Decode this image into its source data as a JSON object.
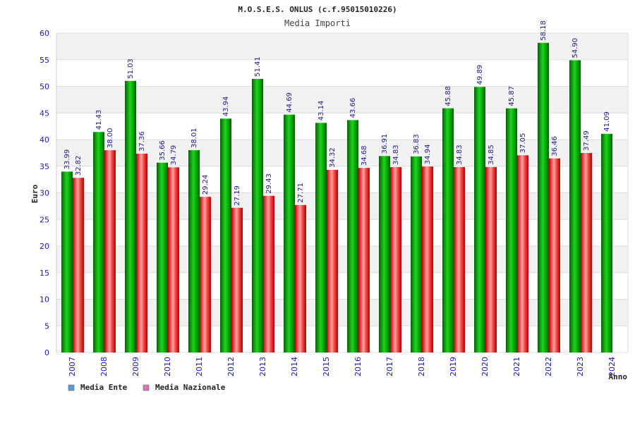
{
  "chart_data": {
    "type": "bar",
    "title": "M.O.S.E.S. ONLUS (c.f.95015010226)",
    "subtitle": "Media Importi",
    "ylabel": "Euro",
    "xlabel": "Anno",
    "ylim": [
      0,
      60
    ],
    "yticks": [
      0,
      5,
      10,
      15,
      20,
      25,
      30,
      35,
      40,
      45,
      50,
      55,
      60
    ],
    "categories": [
      "2007",
      "2008",
      "2009",
      "2010",
      "2011",
      "2012",
      "2013",
      "2014",
      "2015",
      "2016",
      "2017",
      "2018",
      "2019",
      "2020",
      "2021",
      "2022",
      "2023",
      "2024"
    ],
    "series": [
      {
        "name": "Media Ente",
        "color": "#00a000",
        "legend_color": "#5b9bd5",
        "values": [
          33.99,
          41.43,
          51.03,
          35.66,
          38.01,
          43.94,
          51.41,
          44.69,
          43.14,
          43.66,
          36.91,
          36.83,
          45.88,
          49.89,
          45.87,
          58.18,
          54.9,
          41.09
        ],
        "labels": [
          "33.99",
          "41.43",
          "51.03",
          "35.66",
          "38.01",
          "43.94",
          "51.41",
          "44.69",
          "43.14",
          "43.66",
          "36.91",
          "36.83",
          "45.88",
          "49.89",
          "45.87",
          "58.18",
          "54.90",
          "41.09"
        ]
      },
      {
        "name": "Media Nazionale",
        "color": "#e00000",
        "legend_color": "#d07ab8",
        "values": [
          32.82,
          38.0,
          37.36,
          34.79,
          29.24,
          27.19,
          29.43,
          27.71,
          34.32,
          34.68,
          34.83,
          34.94,
          34.83,
          34.85,
          37.05,
          36.46,
          37.49,
          null
        ],
        "labels": [
          "32.82",
          "38.00",
          "37.36",
          "34.79",
          "29.24",
          "27.19",
          "29.43",
          "27.71",
          "34.32",
          "34.68",
          "34.83",
          "34.94",
          "34.83",
          "34.85",
          "37.05",
          "36.46",
          "37.49",
          ""
        ]
      }
    ],
    "legend_position": "bottom-left",
    "grid": true
  }
}
